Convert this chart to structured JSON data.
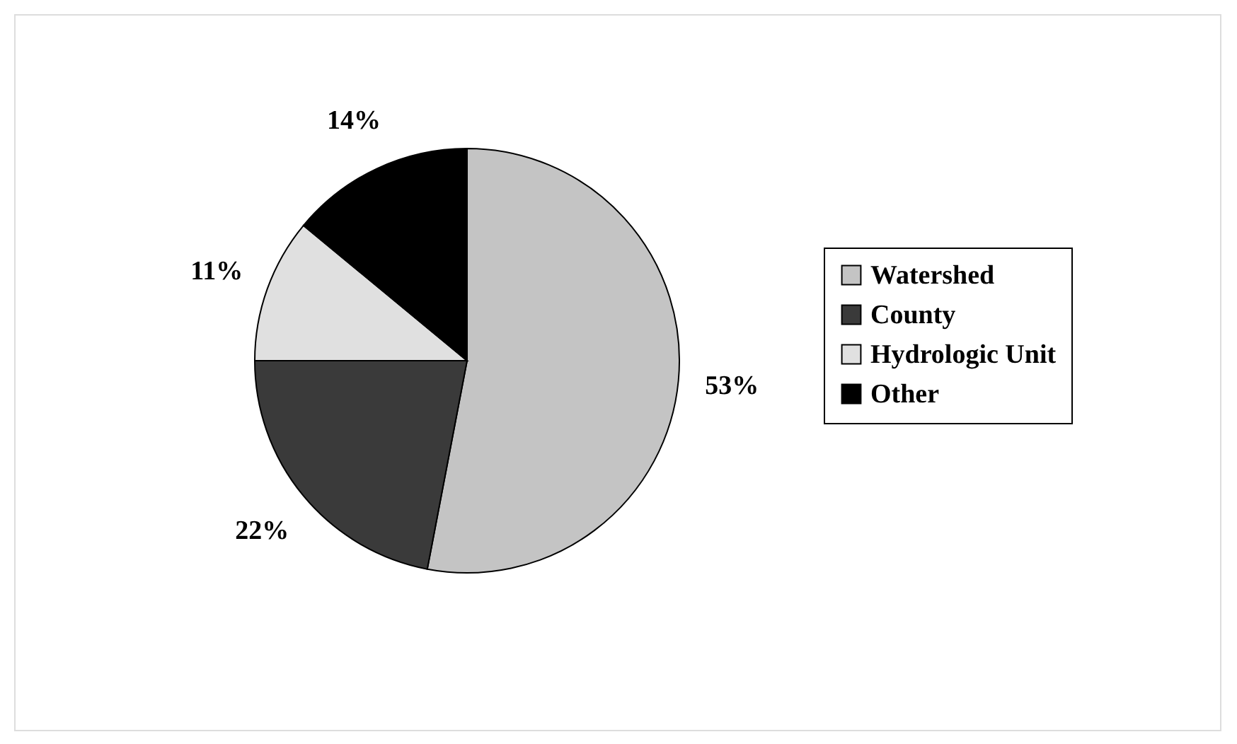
{
  "chart_data": {
    "type": "pie",
    "categories": [
      "Watershed",
      "County",
      "Hydrologic Unit",
      "Other"
    ],
    "values": [
      53,
      22,
      11,
      14
    ],
    "colors": [
      "#c4c4c4",
      "#3a3a3a",
      "#e0e0e0",
      "#000000"
    ],
    "value_labels": [
      "53%",
      "22%",
      "11%",
      "14%"
    ],
    "legend": "right"
  }
}
